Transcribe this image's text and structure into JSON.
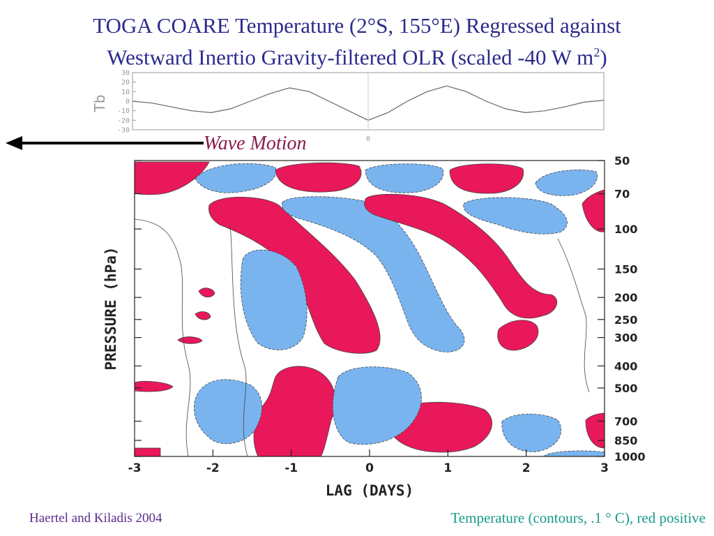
{
  "slide": {
    "title_line1": "TOGA COARE Temperature (2°S, 155°E) Regressed against",
    "title_line2": "Westward Inertio Gravity-filtered OLR (scaled -40 W m",
    "title_sup": "2",
    "title_close": ")",
    "wave_label": "Wave Motion",
    "citation": "Haertel and Kiladis 2004",
    "caption": "Temperature (contours, .1 ° C), red positive"
  },
  "colors": {
    "title": "#2b2b8c",
    "positive_fill": "#e8185a",
    "negative_fill": "#79b4ef",
    "wave_label": "#8b1a4a",
    "citation": "#5b2a8c",
    "caption": "#1a9a8a"
  },
  "chart_data": [
    {
      "type": "line",
      "ylabel": "Tb",
      "yticks": [
        "30",
        "20",
        "10",
        "0",
        "-10",
        "-20",
        "-30"
      ],
      "xticks": [
        "0"
      ],
      "ylim": [
        -30,
        30
      ],
      "xlim": [
        -3,
        3
      ],
      "series": [
        {
          "x": [
            -3,
            -2.75,
            -2.5,
            -2.25,
            -2,
            -1.75,
            -1.5,
            -1.25,
            -1,
            -0.75,
            -0.5,
            -0.25,
            0,
            0.25,
            0.5,
            0.75,
            1,
            1.25,
            1.5,
            1.75,
            2,
            2.25,
            2.5,
            2.75,
            3
          ],
          "values": [
            0,
            -2,
            -6,
            -10,
            -12,
            -8,
            0,
            8,
            14,
            10,
            0,
            -10,
            -20,
            -12,
            0,
            10,
            16,
            10,
            0,
            -8,
            -12,
            -10,
            -6,
            -1,
            1
          ]
        }
      ]
    },
    {
      "type": "heatmap",
      "xlabel": "LAG (DAYS)",
      "ylabel": "PRESSURE (hPa)",
      "xlim": [
        -3,
        3
      ],
      "xticks": [
        "-3",
        "-2",
        "-1",
        "0",
        "1",
        "2",
        "3"
      ],
      "yticks": [
        "50",
        "70",
        "100",
        "150",
        "200",
        "250",
        "300",
        "400",
        "500",
        "700",
        "850",
        "1000"
      ],
      "y_scale": "log",
      "positive_regions": [
        {
          "lag": -2.7,
          "p": 55
        },
        {
          "lag": -0.9,
          "p": 60
        },
        {
          "lag": 1.6,
          "p": 60
        },
        {
          "lag": -1.0,
          "p": 95
        },
        {
          "lag": 0.3,
          "p": 95
        },
        {
          "lag": -0.1,
          "p": 230
        },
        {
          "lag": 1.8,
          "p": 300
        },
        {
          "lag": -1.1,
          "p": 700
        },
        {
          "lag": 1.0,
          "p": 800
        },
        {
          "lag": 2.9,
          "p": 850
        }
      ],
      "negative_regions": [
        {
          "lag": -1.6,
          "p": 55
        },
        {
          "lag": 0.1,
          "p": 60
        },
        {
          "lag": 2.3,
          "p": 70
        },
        {
          "lag": -0.4,
          "p": 95
        },
        {
          "lag": 1.6,
          "p": 95
        },
        {
          "lag": -1.5,
          "p": 220
        },
        {
          "lag": 1.0,
          "p": 250
        },
        {
          "lag": -2.0,
          "p": 700
        },
        {
          "lag": 0.0,
          "p": 750
        },
        {
          "lag": 2.0,
          "p": 850
        }
      ]
    }
  ]
}
